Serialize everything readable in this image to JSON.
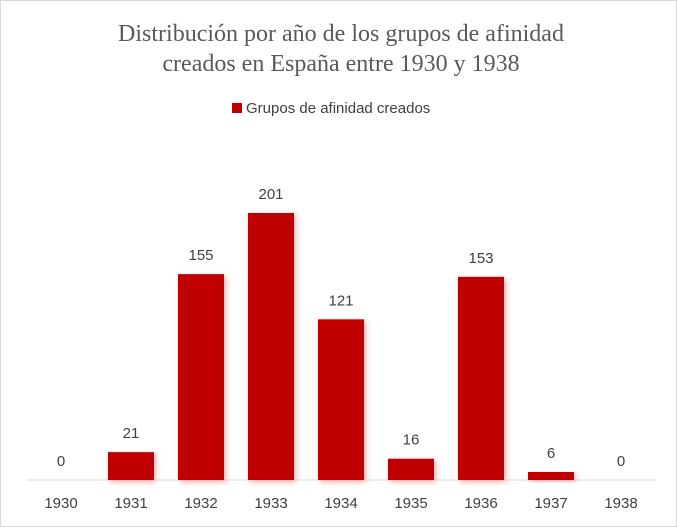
{
  "chart_data": {
    "type": "bar",
    "title_lines": [
      "Distribución por año de los grupos de afinidad",
      "creados en España entre 1930 y 1938"
    ],
    "legend": "Grupos de afinidad creados",
    "legend_position": "top",
    "categories": [
      "1930",
      "1931",
      "1932",
      "1933",
      "1934",
      "1935",
      "1936",
      "1937",
      "1938"
    ],
    "series": [
      {
        "name": "Grupos de afinidad creados",
        "values": [
          0,
          21,
          155,
          201,
          121,
          16,
          153,
          6,
          0
        ]
      }
    ],
    "xlabel": "",
    "ylabel": "",
    "ylim": [
      0,
      201
    ],
    "grid": false,
    "bar_color": "#C00000"
  }
}
